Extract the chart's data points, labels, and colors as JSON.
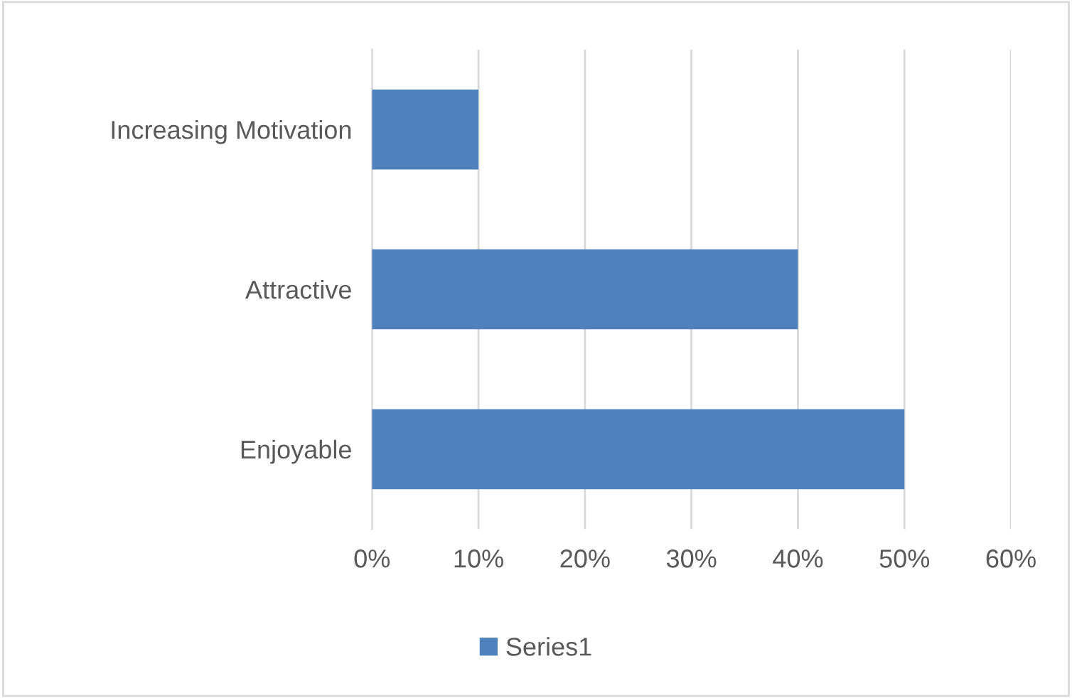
{
  "chart_data": {
    "type": "bar",
    "orientation": "horizontal",
    "categories": [
      "Increasing Motivation",
      "Attractive",
      "Enjoyable"
    ],
    "series": [
      {
        "name": "Series1",
        "color": "#4f81bd",
        "values": [
          10,
          40,
          50
        ]
      }
    ],
    "xlim": [
      0,
      60
    ],
    "xticks": [
      {
        "value": 0,
        "label": "0%"
      },
      {
        "value": 10,
        "label": "10%"
      },
      {
        "value": 20,
        "label": "20%"
      },
      {
        "value": 30,
        "label": "30%"
      },
      {
        "value": 40,
        "label": "40%"
      },
      {
        "value": 50,
        "label": "50%"
      },
      {
        "value": 60,
        "label": "60%"
      }
    ],
    "grid": "x",
    "legend": "bottom"
  }
}
